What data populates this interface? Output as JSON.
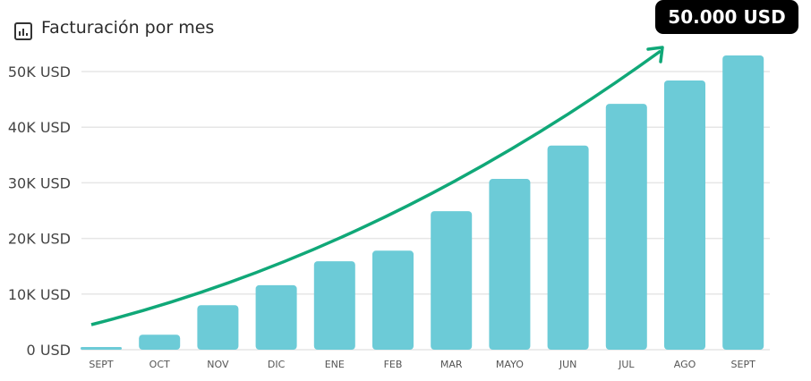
{
  "header": {
    "title": "Facturación por mes",
    "icon": "bar-chart-icon"
  },
  "badge": "50.000 USD",
  "colors": {
    "bar": "#6ccbd7",
    "trend": "#10a878",
    "grid": "#e6e6e6"
  },
  "chart_data": {
    "type": "bar",
    "title": "Facturación por mes",
    "categories": [
      "SEPT",
      "OCT",
      "NOV",
      "DIC",
      "ENE",
      "FEB",
      "MAR",
      "MAYO",
      "JUN",
      "JUL",
      "AGO",
      "SEPT"
    ],
    "values": [
      300,
      2700,
      8000,
      11600,
      15900,
      17800,
      24900,
      30700,
      36700,
      44200,
      48400,
      52900
    ],
    "y_ticks": [
      0,
      10000,
      20000,
      30000,
      40000,
      50000
    ],
    "y_tick_labels": [
      "0 USD",
      "10K USD",
      "20K USD",
      "30K USD",
      "40K USD",
      "50K USD"
    ],
    "ylim": [
      0,
      50000
    ],
    "grid": true,
    "annotation": "trend arrow rising to 50.000 USD",
    "xlabel": "",
    "ylabel": ""
  }
}
